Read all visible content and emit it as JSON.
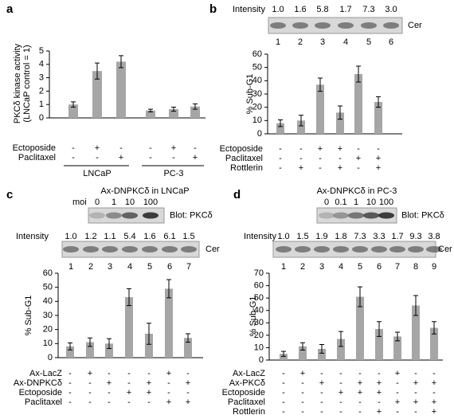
{
  "chart_data": [
    {
      "type": "bar",
      "panel": "a",
      "ylabel": [
        "PKCδ kinase activity",
        "(LNCaP control = 1)"
      ],
      "ylim": [
        0,
        5
      ],
      "yticks": [
        0,
        1,
        2,
        3,
        4,
        5
      ],
      "color": "#a6a6a6",
      "values": [
        1.0,
        3.5,
        4.2,
        0.55,
        0.65,
        0.85
      ],
      "errors": [
        0.2,
        0.6,
        0.45,
        0.1,
        0.15,
        0.2
      ],
      "conditions": [
        {
          "name": "Ectoposide",
          "signs": [
            "-",
            "+",
            "-",
            "-",
            "+",
            "-"
          ]
        },
        {
          "name": "Paclitaxel",
          "signs": [
            "-",
            "-",
            "+",
            "-",
            "-",
            "+"
          ]
        }
      ],
      "groups": [
        "LNCaP",
        "PC-3"
      ]
    },
    {
      "type": "bar",
      "panel": "b",
      "ylabel": [
        "% Sub-G1"
      ],
      "ylim": [
        0,
        60
      ],
      "yticks": [
        0,
        10,
        20,
        30,
        40,
        50,
        60
      ],
      "color": "#a6a6a6",
      "values": [
        8,
        10,
        37,
        16,
        45,
        24
      ],
      "errors": [
        2.5,
        4,
        5,
        5,
        6,
        4
      ],
      "intensity": {
        "label": "Intensity",
        "values": [
          "1.0",
          "1.6",
          "5.8",
          "1.7",
          "7.3",
          "3.0"
        ]
      },
      "cer_label": "Cer",
      "lanes": [
        "1",
        "2",
        "3",
        "4",
        "5",
        "6"
      ],
      "conditions": [
        {
          "name": "Ectoposide",
          "signs": [
            "-",
            "-",
            "+",
            "+",
            "-",
            "-"
          ]
        },
        {
          "name": "Paclitaxel",
          "signs": [
            "-",
            "-",
            "-",
            "-",
            "+",
            "+"
          ]
        },
        {
          "name": "Rottlerin",
          "signs": [
            "-",
            "+",
            "-",
            "+",
            "-",
            "+"
          ]
        }
      ]
    },
    {
      "type": "bar",
      "panel": "c",
      "ylabel": [
        "% Sub-G1"
      ],
      "ylim": [
        0,
        60
      ],
      "yticks": [
        0,
        10,
        20,
        30,
        40,
        50,
        60
      ],
      "color": "#a6a6a6",
      "values": [
        8,
        11,
        10,
        43,
        17,
        49,
        14
      ],
      "errors": [
        2.5,
        3,
        3.5,
        6,
        7.5,
        6.5,
        3
      ],
      "blot": {
        "title": "Ax-DNPKCδ in LNCaP",
        "moi_label": "moi",
        "moi": [
          "0",
          "1",
          "10",
          "100"
        ],
        "label": "Blot: PKCδ"
      },
      "intensity": {
        "label": "Intensity",
        "values": [
          "1.0",
          "1.2",
          "1.1",
          "5.4",
          "1.6",
          "6.1",
          "1.5"
        ]
      },
      "cer_label": "Cer",
      "lanes": [
        "1",
        "2",
        "3",
        "4",
        "5",
        "6",
        "7"
      ],
      "conditions": [
        {
          "name": "Ax-LacZ",
          "signs": [
            "-",
            "+",
            "-",
            "-",
            "-",
            "+",
            "-"
          ]
        },
        {
          "name": "Ax-DNPKCδ",
          "signs": [
            "-",
            "-",
            "+",
            "-",
            "+",
            "-",
            "+"
          ]
        },
        {
          "name": "Ectoposide",
          "signs": [
            "-",
            "-",
            "-",
            "+",
            "+",
            "-",
            "-"
          ]
        },
        {
          "name": "Paclitaxel",
          "signs": [
            "-",
            "-",
            "-",
            "-",
            "-",
            "+",
            "+"
          ]
        }
      ]
    },
    {
      "type": "bar",
      "panel": "d",
      "ylabel": [
        "% Sub-G1"
      ],
      "ylim": [
        0,
        70
      ],
      "yticks": [
        0,
        10,
        20,
        30,
        40,
        50,
        60,
        70
      ],
      "color": "#a6a6a6",
      "values": [
        5,
        11,
        9,
        17,
        51,
        25,
        19,
        44,
        26
      ],
      "errors": [
        2,
        3,
        3.5,
        6,
        8,
        6,
        3.5,
        8,
        5
      ],
      "blot": {
        "title": "Ax-DNPKCδ in PC-3",
        "moi": [
          "0",
          "0.1",
          "1",
          "10",
          "100"
        ],
        "label": "Blot: PKCδ"
      },
      "intensity": {
        "label": "Intensity",
        "values": [
          "1.0",
          "1.5",
          "1.9",
          "1.8",
          "7.3",
          "3.3",
          "1.7",
          "9.3",
          "3.8"
        ]
      },
      "cer_label": "Cer",
      "lanes": [
        "1",
        "2",
        "3",
        "4",
        "5",
        "6",
        "7",
        "8",
        "9"
      ],
      "conditions": [
        {
          "name": "Ax-LacZ",
          "signs": [
            "-",
            "+",
            "-",
            "-",
            "-",
            "-",
            "+",
            "-",
            "-"
          ]
        },
        {
          "name": "Ax-PKCδ",
          "signs": [
            "-",
            "-",
            "+",
            "-",
            "+",
            "+",
            "-",
            "+",
            "+"
          ]
        },
        {
          "name": "Ectoposide",
          "signs": [
            "-",
            "-",
            "-",
            "+",
            "+",
            "+",
            "-",
            "-",
            "-"
          ]
        },
        {
          "name": "Paclitaxel",
          "signs": [
            "-",
            "-",
            "-",
            "-",
            "-",
            "-",
            "+",
            "+",
            "+"
          ]
        },
        {
          "name": "Rottlerin",
          "signs": [
            "-",
            "-",
            "-",
            "-",
            "-",
            "+",
            "-",
            "-",
            "+"
          ]
        }
      ]
    }
  ]
}
